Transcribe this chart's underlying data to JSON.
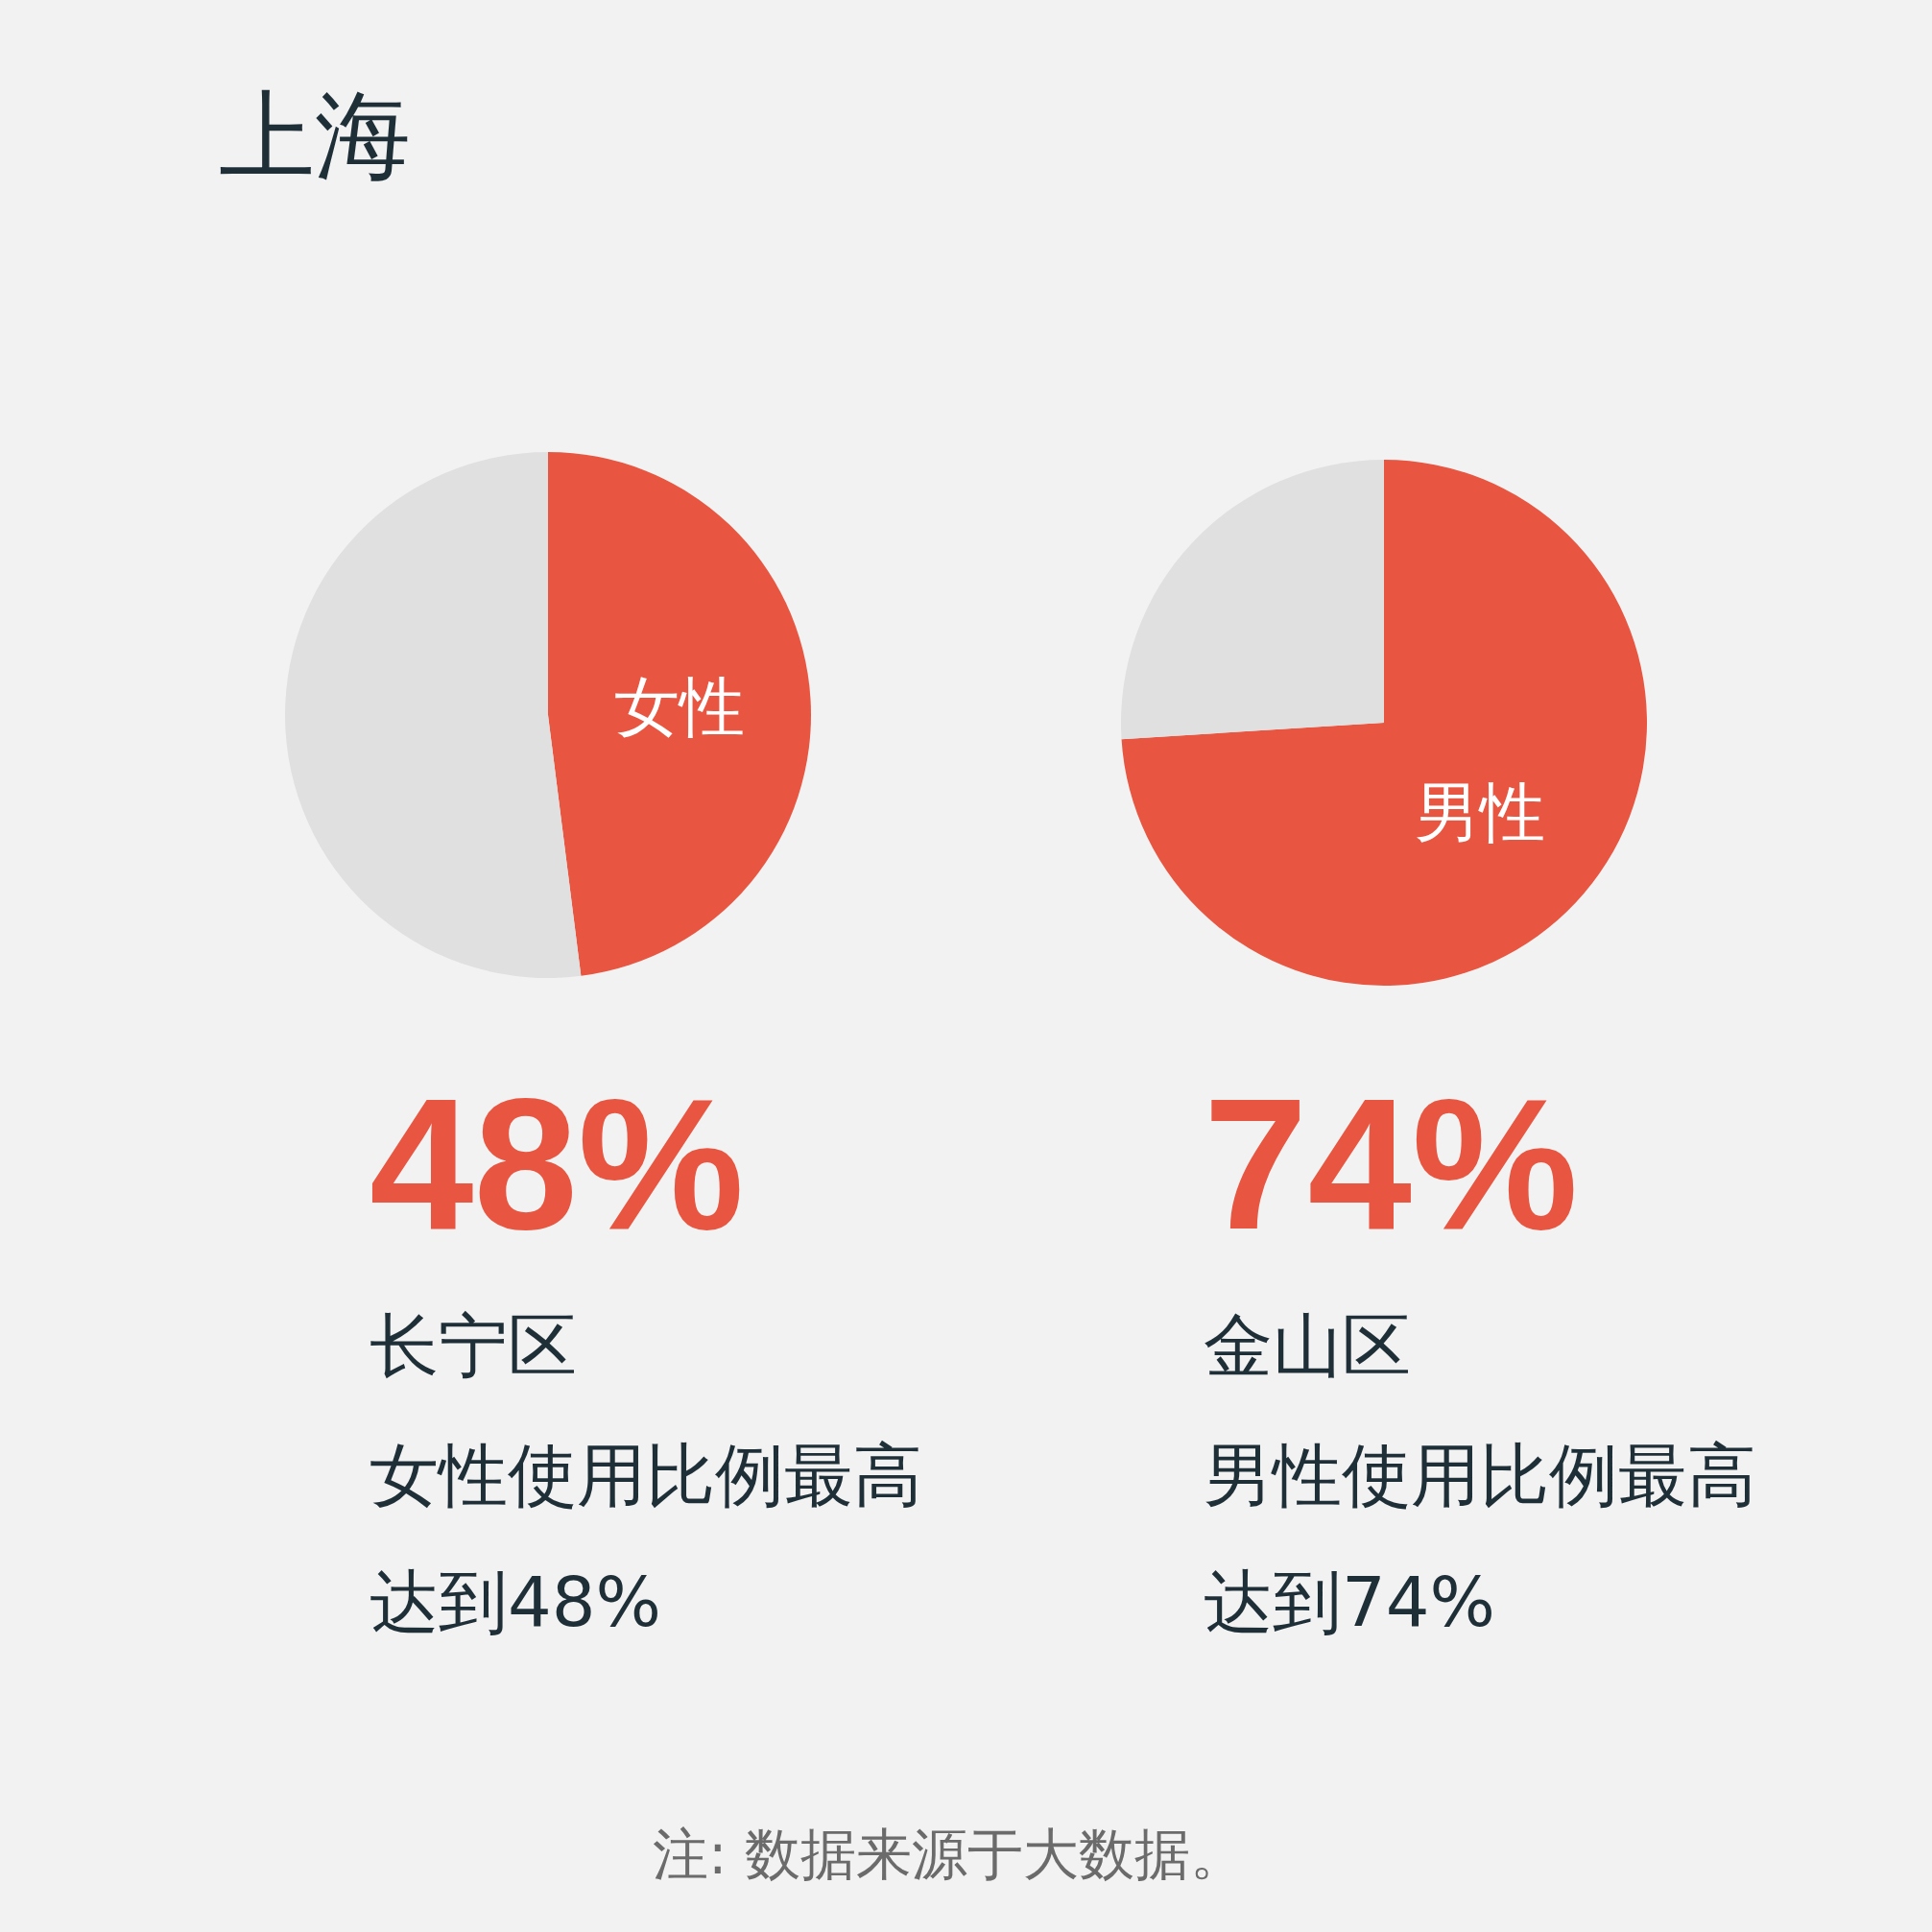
{
  "chart_data": [
    {
      "type": "pie",
      "title": "上海",
      "categories": [
        "女性",
        null
      ],
      "values": [
        48,
        52
      ],
      "colors": [
        "#e85540",
        "#e0e0e0"
      ],
      "annotations": [
        "48%",
        "长宁区",
        "女性使用比例最高",
        "达到48%"
      ]
    },
    {
      "type": "pie",
      "categories": [
        "男性",
        null
      ],
      "values": [
        74,
        26
      ],
      "colors": [
        "#e85540",
        "#e0e0e0"
      ],
      "annotations": [
        "74%",
        "金山区",
        "男性使用比例最高",
        "达到74%",
        "注: 数据来源于大数据。"
      ]
    }
  ]
}
